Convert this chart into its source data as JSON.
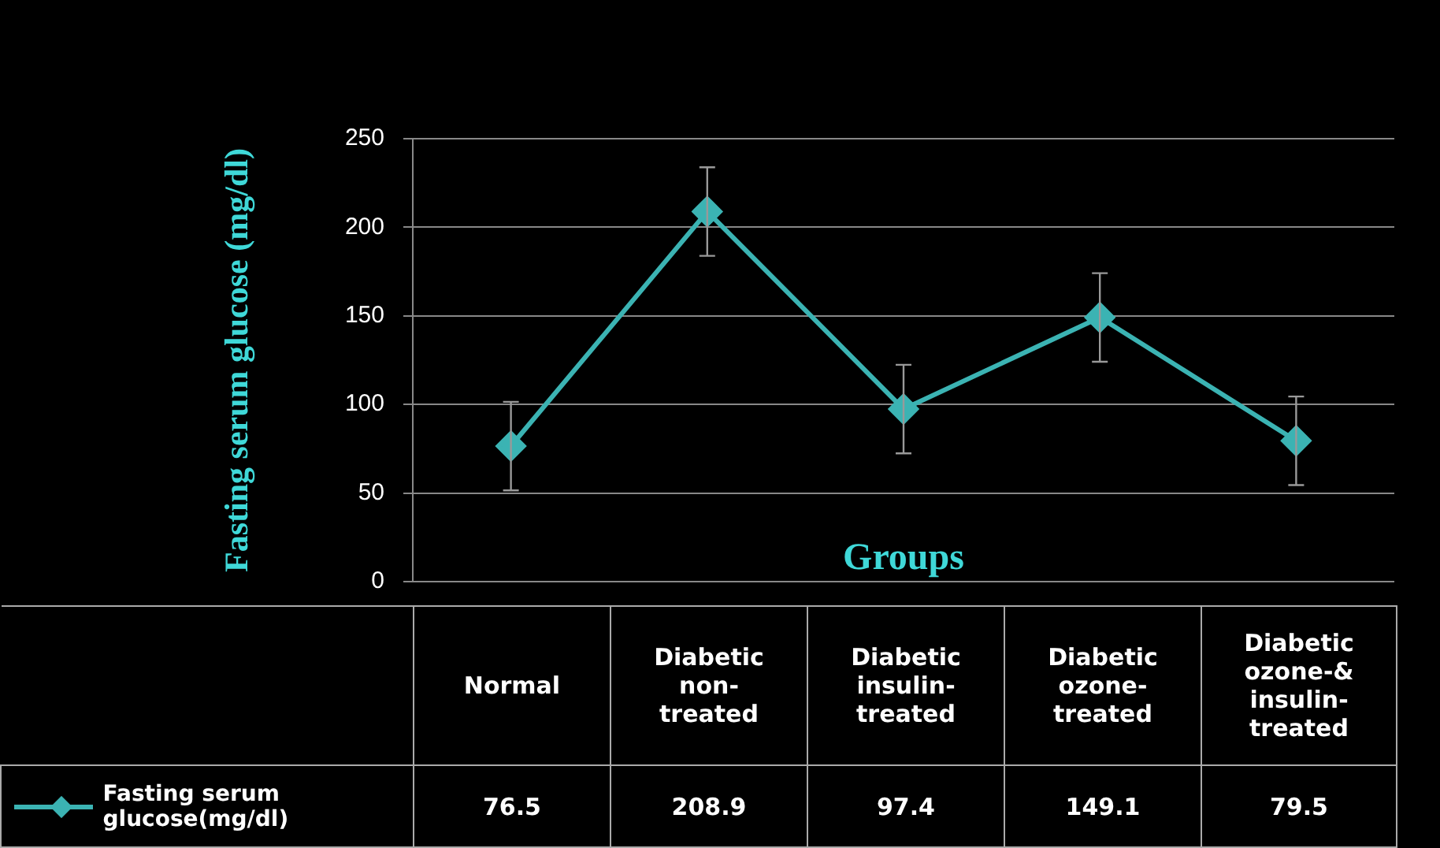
{
  "chart_data": {
    "type": "line",
    "xlabel": "Groups",
    "ylabel": "Fasting serum glucose (mg/dl)",
    "categories": [
      "Normal",
      "Diabetic non-treated",
      "Diabetic insulin-treated",
      "Diabetic ozone-treated",
      "Diabetic ozone-& insulin-treated"
    ],
    "series": [
      {
        "name": "Fasting serum glucose(mg/dl)",
        "color": "#3bb3b3",
        "values": [
          76.5,
          208.9,
          97.4,
          149.1,
          79.5
        ],
        "errors": [
          25,
          25,
          25,
          25,
          25
        ]
      }
    ],
    "ylim": [
      0,
      250
    ],
    "yticks": [
      0,
      50,
      100,
      150,
      200,
      250
    ],
    "grid": "y",
    "legend": "bottom",
    "marker": "diamond",
    "line_style": "solid",
    "data_labels": true
  }
}
